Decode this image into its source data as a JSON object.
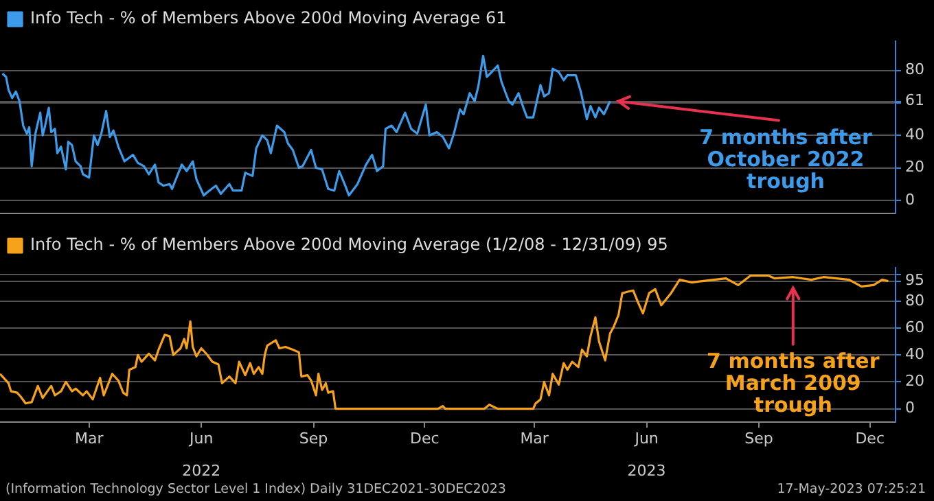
{
  "chart_data": [
    {
      "type": "line",
      "series": [
        {
          "name": "Info Tech - % of Members Above 200d Moving Average 61",
          "color": "#3d9be9",
          "x": [
            "2022-01-03",
            "2022-01-06",
            "2022-01-08",
            "2022-01-11",
            "2022-01-14",
            "2022-01-17",
            "2022-01-20",
            "2022-01-23",
            "2022-01-25",
            "2022-01-27",
            "2022-01-30",
            "2022-02-03",
            "2022-02-05",
            "2022-02-07",
            "2022-02-10",
            "2022-02-12",
            "2022-02-15",
            "2022-02-17",
            "2022-02-20",
            "2022-02-24",
            "2022-02-26",
            "2022-03-01",
            "2022-03-04",
            "2022-03-08",
            "2022-03-10",
            "2022-03-15",
            "2022-03-19",
            "2022-03-22",
            "2022-03-25",
            "2022-03-29",
            "2022-04-01",
            "2022-04-04",
            "2022-04-08",
            "2022-04-13",
            "2022-04-20",
            "2022-04-24",
            "2022-04-29",
            "2022-05-03",
            "2022-05-08",
            "2022-05-11",
            "2022-05-15",
            "2022-05-20",
            "2022-05-22",
            "2022-05-30",
            "2022-06-03",
            "2022-06-08",
            "2022-06-11",
            "2022-06-17",
            "2022-06-20",
            "2022-06-27",
            "2022-07-01",
            "2022-07-08",
            "2022-07-11",
            "2022-07-18",
            "2022-07-21",
            "2022-07-27",
            "2022-07-30",
            "2022-08-04",
            "2022-08-08",
            "2022-08-11",
            "2022-08-16",
            "2022-08-22",
            "2022-08-25",
            "2022-08-29",
            "2022-09-03",
            "2022-09-06",
            "2022-09-13",
            "2022-09-17",
            "2022-09-22",
            "2022-09-27",
            "2022-10-02",
            "2022-10-06",
            "2022-10-11",
            "2022-10-14",
            "2022-10-21",
            "2022-10-28",
            "2022-11-02",
            "2022-11-06",
            "2022-11-11",
            "2022-11-13",
            "2022-11-18",
            "2022-11-22",
            "2022-11-29",
            "2022-12-04",
            "2022-12-09",
            "2022-12-16",
            "2022-12-19",
            "2022-12-25",
            "2022-12-30",
            "2023-01-04",
            "2023-01-08",
            "2023-01-13",
            "2023-01-16",
            "2023-01-21",
            "2023-01-25",
            "2023-01-28",
            "2023-02-01",
            "2023-02-04",
            "2023-02-08",
            "2023-02-13",
            "2023-02-16",
            "2023-02-22",
            "2023-02-25",
            "2023-03-02",
            "2023-03-06",
            "2023-03-09",
            "2023-03-14",
            "2023-03-20",
            "2023-03-23",
            "2023-03-27",
            "2023-03-30",
            "2023-04-04",
            "2023-04-08",
            "2023-04-11",
            "2023-04-18",
            "2023-04-22",
            "2023-04-27",
            "2023-04-30",
            "2023-05-04",
            "2023-05-07",
            "2023-05-11",
            "2023-05-16"
          ],
          "values": [
            78,
            76,
            68,
            63,
            67,
            61,
            46,
            41,
            45,
            21,
            41,
            54,
            40,
            46,
            57,
            42,
            44,
            29,
            33,
            19,
            36,
            34,
            24,
            21,
            16,
            14,
            40,
            34,
            41,
            55,
            39,
            43,
            33,
            24,
            28,
            23,
            21,
            16,
            22,
            11,
            9,
            10,
            7,
            22,
            18,
            24,
            13,
            3,
            5,
            9,
            4,
            10,
            6,
            6,
            17,
            15,
            32,
            40,
            37,
            29,
            46,
            42,
            35,
            31,
            20,
            21,
            31,
            20,
            19,
            7,
            6,
            18,
            9,
            3,
            10,
            22,
            28,
            18,
            21,
            44,
            46,
            42,
            54,
            44,
            41,
            59,
            40,
            42,
            39,
            32,
            41,
            56,
            53,
            66,
            61,
            70,
            89,
            76,
            79,
            83,
            73,
            61,
            59,
            66,
            57,
            51,
            51,
            71,
            64,
            66,
            81,
            79,
            74,
            77,
            77,
            67,
            50,
            58,
            51,
            57,
            53,
            61
          ]
        }
      ],
      "xlim": [
        "2022-01-01",
        "2024-01-05"
      ],
      "ylim": [
        -8,
        98
      ],
      "yticks": [
        0,
        20,
        40,
        {
          "value": 60,
          "label": null
        },
        61,
        80
      ],
      "grid": "y",
      "legend": "top left",
      "tick_labels": "y",
      "annotations": [
        {
          "text": "7 months after October 2022 trough",
          "x": "2023-05-16",
          "y": 61
        }
      ]
    },
    {
      "type": "line",
      "series": [
        {
          "name": "Info Tech - % of Members Above 200d Moving Average (1/2/08 - 12/31/09) 95",
          "color": "#f7a21b",
          "x": [
            "2022-01-01",
            "2022-01-04",
            "2022-01-08",
            "2022-01-10",
            "2022-01-15",
            "2022-01-18",
            "2022-01-22",
            "2022-01-27",
            "2022-02-01",
            "2022-02-05",
            "2022-02-08",
            "2022-02-12",
            "2022-02-15",
            "2022-02-20",
            "2022-02-24",
            "2022-03-01",
            "2022-03-04",
            "2022-03-10",
            "2022-03-13",
            "2022-03-18",
            "2022-03-24",
            "2022-03-27",
            "2022-04-03",
            "2022-04-08",
            "2022-04-12",
            "2022-04-15",
            "2022-04-17",
            "2022-04-22",
            "2022-04-24",
            "2022-04-27",
            "2022-05-03",
            "2022-05-08",
            "2022-05-11",
            "2022-05-16",
            "2022-05-20",
            "2022-05-23",
            "2022-05-29",
            "2022-06-01",
            "2022-06-03",
            "2022-06-06",
            "2022-06-08",
            "2022-06-11",
            "2022-06-15",
            "2022-06-20",
            "2022-06-24",
            "2022-06-29",
            "2022-07-02",
            "2022-07-08",
            "2022-07-13",
            "2022-07-16",
            "2022-07-21",
            "2022-07-25",
            "2022-07-28",
            "2022-08-01",
            "2022-08-04",
            "2022-08-06",
            "2022-08-08",
            "2022-08-15",
            "2022-08-18",
            "2022-08-23",
            "2022-08-29",
            "2022-09-03",
            "2022-09-05",
            "2022-09-10",
            "2022-09-13",
            "2022-09-17",
            "2022-09-19",
            "2022-09-22",
            "2022-09-25",
            "2022-09-27",
            "2022-10-01",
            "2022-10-03",
            "2022-12-26",
            "2022-12-30",
            "2023-01-01",
            "2023-02-02",
            "2023-02-06",
            "2023-02-13",
            "2023-03-14",
            "2023-03-16",
            "2023-03-20",
            "2023-03-23",
            "2023-03-27",
            "2023-03-30",
            "2023-04-04",
            "2023-04-08",
            "2023-04-11",
            "2023-04-15",
            "2023-04-20",
            "2023-04-23",
            "2023-04-27",
            "2023-04-30",
            "2023-05-04",
            "2023-05-07",
            "2023-05-12",
            "2023-05-16",
            "2023-05-19",
            "2023-05-23",
            "2023-05-26",
            "2023-05-30",
            "2023-06-04",
            "2023-06-08",
            "2023-06-12",
            "2023-06-17",
            "2023-06-22",
            "2023-06-27",
            "2023-07-05",
            "2023-07-12",
            "2023-07-22",
            "2023-08-09",
            "2023-08-19",
            "2023-08-29",
            "2023-09-08",
            "2023-09-23",
            "2023-09-28",
            "2023-10-13",
            "2023-10-28",
            "2023-11-07",
            "2023-11-28",
            "2023-12-08",
            "2023-12-18",
            "2023-12-25",
            "2023-12-30"
          ],
          "values": [
            26,
            23,
            19,
            13,
            12,
            9,
            4,
            5,
            17,
            8,
            12,
            17,
            10,
            13,
            20,
            13,
            15,
            10,
            13,
            7,
            23,
            10,
            26,
            21,
            12,
            10,
            29,
            31,
            40,
            35,
            41,
            36,
            44,
            55,
            54,
            40,
            45,
            52,
            45,
            65,
            46,
            39,
            45,
            40,
            35,
            33,
            19,
            24,
            19,
            35,
            25,
            34,
            26,
            31,
            26,
            40,
            47,
            51,
            45,
            46,
            44,
            42,
            24,
            25,
            21,
            10,
            26,
            14,
            19,
            12,
            13,
            0,
            0,
            2,
            0,
            0,
            3,
            0,
            0,
            4,
            7,
            20,
            10,
            26,
            18,
            34,
            29,
            35,
            31,
            44,
            39,
            54,
            68,
            50,
            36,
            56,
            61,
            70,
            86,
            87,
            88,
            79,
            71,
            86,
            89,
            77,
            86,
            96,
            94,
            96,
            97,
            92,
            99,
            99,
            97,
            98,
            96,
            98,
            96,
            91,
            92,
            96,
            95
          ]
        }
      ],
      "xlim": [
        "2022-01-01",
        "2024-01-05"
      ],
      "xticks": [
        {
          "value": "2022-03-15",
          "label": "Mar"
        },
        {
          "value": "2022-06-15",
          "label": "Jun"
        },
        {
          "value": "2022-09-15",
          "label": "Sep"
        },
        {
          "value": "2022-12-15",
          "label": "Dec"
        },
        {
          "value": "2023-03-15",
          "label": "Mar"
        },
        {
          "value": "2023-06-15",
          "label": "Jun"
        },
        {
          "value": "2023-09-15",
          "label": "Sep"
        },
        {
          "value": "2023-12-15",
          "label": "Dec"
        }
      ],
      "x2lim": [
        "2022-01-01",
        "2024-01-05"
      ],
      "x2ticks": [
        {
          "value": "2022-06-15",
          "label": "2022"
        },
        {
          "value": "2023-06-15",
          "label": "2023"
        }
      ],
      "ylim": [
        -10,
        105
      ],
      "yticks": [
        0,
        20,
        40,
        60,
        80,
        95,
        {
          "value": 100,
          "label": null
        }
      ],
      "grid": "y",
      "legend": "top left",
      "annotations": [
        {
          "text": "7 months after March 2009 trough",
          "x": "2023-10-13",
          "y": 98
        },
        "(Information Technology Sector Level 1 Index)  Daily 31DEC2021-30DEC2023",
        "17-May-2023 07:25:21"
      ]
    }
  ]
}
